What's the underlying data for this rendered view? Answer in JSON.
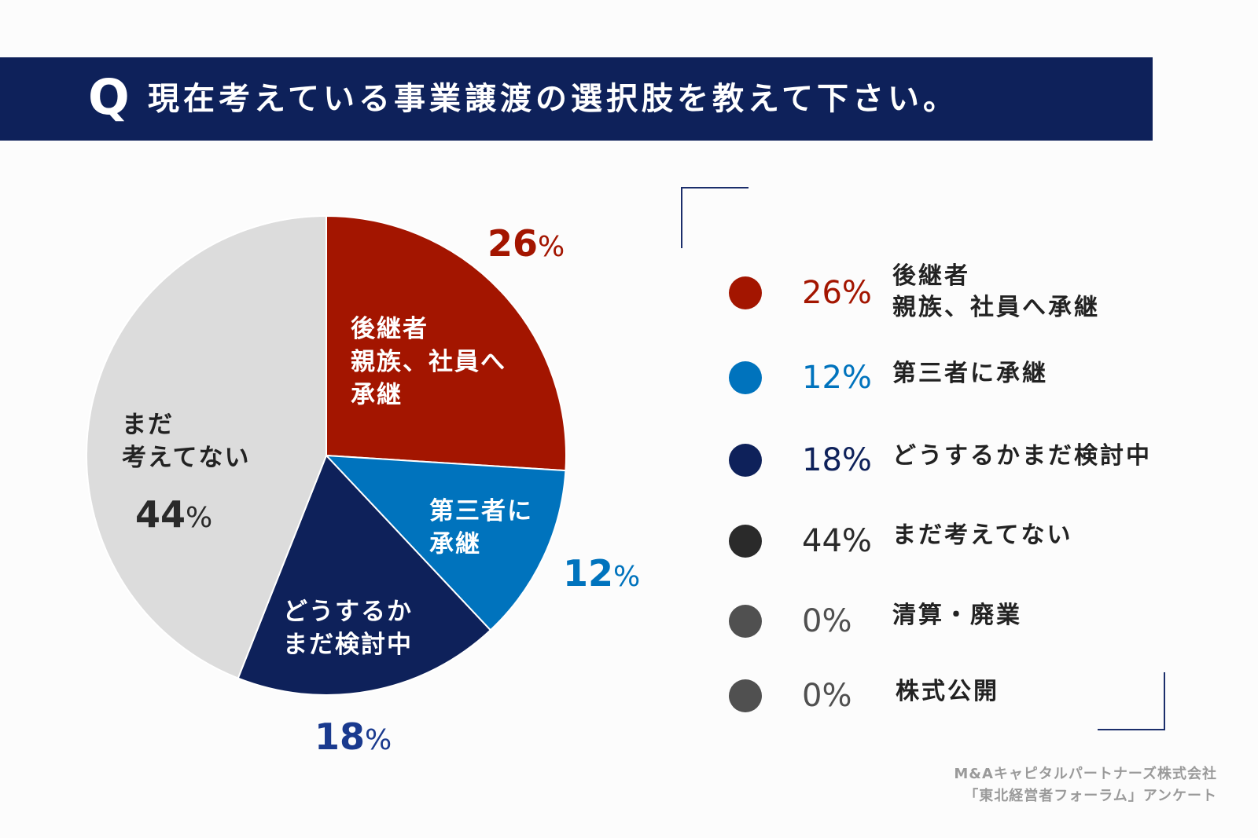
{
  "header": {
    "q_mark": "Q",
    "title": "現在考えている事業譲渡の選択肢を教えて下さい。"
  },
  "colors": {
    "banner": "#0e215a",
    "red": "#a31500",
    "blue": "#0073bd",
    "navy": "#0e215a",
    "gray": "#dcdcdc",
    "black": "#2a2a2a",
    "darkgray": "#505050"
  },
  "chart_data": {
    "type": "pie",
    "slices": [
      {
        "name": "後継者 親族、社員へ承継",
        "value": 26,
        "color": "#a31500"
      },
      {
        "name": "第三者に承継",
        "value": 12,
        "color": "#0073bd"
      },
      {
        "name": "どうするかまだ検討中",
        "value": 18,
        "color": "#0e215a"
      },
      {
        "name": "まだ考えてない",
        "value": 44,
        "color": "#dcdcdc"
      }
    ],
    "unit": "%",
    "labels": {
      "s0": {
        "lines": [
          "後継者",
          "親族、社員へ",
          "承継"
        ],
        "pct": "26",
        "pct_unit": "%"
      },
      "s1": {
        "lines": [
          "第三者に",
          "承継"
        ],
        "pct": "12",
        "pct_unit": "%"
      },
      "s2": {
        "lines": [
          "どうするか",
          "まだ検討中"
        ],
        "pct": "18",
        "pct_unit": "%"
      },
      "s3": {
        "lines": [
          "まだ",
          "考えてない"
        ],
        "pct": "44",
        "pct_unit": "%"
      }
    },
    "legend": [
      {
        "pct": "26%",
        "lines": [
          "後継者",
          "親族、社員へ承継"
        ],
        "dot_color": "#a31500",
        "pct_color": "#a31500"
      },
      {
        "pct": "12%",
        "lines": [
          "第三者に承継"
        ],
        "dot_color": "#0073bd",
        "pct_color": "#0073bd"
      },
      {
        "pct": "18%",
        "lines": [
          "どうするかまだ検討中"
        ],
        "dot_color": "#0e215a",
        "pct_color": "#0e215a"
      },
      {
        "pct": "44%",
        "lines": [
          "まだ考えてない"
        ],
        "dot_color": "#2a2a2a",
        "pct_color": "#2a2a2a"
      },
      {
        "pct": "0%",
        "lines": [
          "清算・廃業"
        ],
        "dot_color": "#505050",
        "pct_color": "#505050"
      },
      {
        "pct": "0%",
        "lines": [
          "株式公開"
        ],
        "dot_color": "#505050",
        "pct_color": "#505050"
      }
    ]
  },
  "source": {
    "line1": "M&Aキャピタルパートナーズ株式会社",
    "line2": "「東北経営者フォーラム」アンケート"
  }
}
